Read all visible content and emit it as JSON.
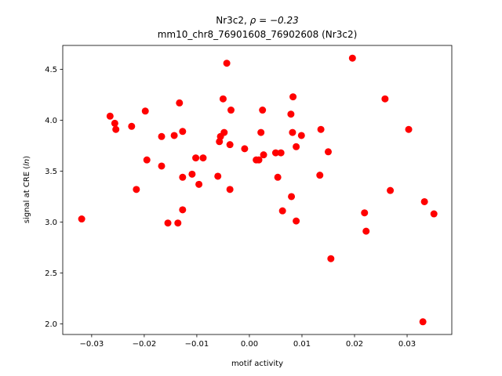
{
  "chart_data": {
    "type": "scatter",
    "title_line1_prefix": "Nr3c2, ",
    "title_line1_rho": "ρ = −0.23",
    "title_line2": "mm10_chr8_76901608_76902608 (Nr3c2)",
    "xlabel": "motif activity",
    "ylabel_prefix": "signal at CRE (",
    "ylabel_italic": "ln",
    "ylabel_suffix": ")",
    "xlim": [
      -0.0355,
      0.0385
    ],
    "ylim": [
      1.895,
      4.735
    ],
    "xticks": [
      -0.03,
      -0.02,
      -0.01,
      0.0,
      0.01,
      0.02,
      0.03
    ],
    "xtick_labels": [
      "−0.03",
      "−0.02",
      "−0.01",
      "0.00",
      "0.01",
      "0.02",
      "0.03"
    ],
    "yticks": [
      2.0,
      2.5,
      3.0,
      3.5,
      4.0,
      4.5
    ],
    "ytick_labels": [
      "2.0",
      "2.5",
      "3.0",
      "3.5",
      "4.0",
      "4.5"
    ],
    "marker_color": "#ff0000",
    "points": [
      {
        "x": -0.0319,
        "y": 3.03
      },
      {
        "x": -0.0265,
        "y": 4.04
      },
      {
        "x": -0.0256,
        "y": 3.97
      },
      {
        "x": -0.0254,
        "y": 3.91
      },
      {
        "x": -0.0224,
        "y": 3.94
      },
      {
        "x": -0.0215,
        "y": 3.32
      },
      {
        "x": -0.0198,
        "y": 4.09
      },
      {
        "x": -0.0195,
        "y": 3.61
      },
      {
        "x": -0.0167,
        "y": 3.84
      },
      {
        "x": -0.0167,
        "y": 3.55
      },
      {
        "x": -0.0155,
        "y": 2.99
      },
      {
        "x": -0.0143,
        "y": 3.85
      },
      {
        "x": -0.0136,
        "y": 2.99
      },
      {
        "x": -0.0133,
        "y": 4.17
      },
      {
        "x": -0.0127,
        "y": 3.89
      },
      {
        "x": -0.0127,
        "y": 3.44
      },
      {
        "x": -0.0127,
        "y": 3.12
      },
      {
        "x": -0.0109,
        "y": 3.47
      },
      {
        "x": -0.0102,
        "y": 3.63
      },
      {
        "x": -0.0096,
        "y": 3.37
      },
      {
        "x": -0.0088,
        "y": 3.63
      },
      {
        "x": -0.006,
        "y": 3.45
      },
      {
        "x": -0.0057,
        "y": 3.79
      },
      {
        "x": -0.0055,
        "y": 3.84
      },
      {
        "x": -0.005,
        "y": 4.21
      },
      {
        "x": -0.0048,
        "y": 3.88
      },
      {
        "x": -0.0043,
        "y": 4.56
      },
      {
        "x": -0.0037,
        "y": 3.76
      },
      {
        "x": -0.0037,
        "y": 3.32
      },
      {
        "x": -0.0035,
        "y": 4.1
      },
      {
        "x": -0.0009,
        "y": 3.72
      },
      {
        "x": 0.0013,
        "y": 3.61
      },
      {
        "x": 0.0018,
        "y": 3.61
      },
      {
        "x": 0.0022,
        "y": 3.88
      },
      {
        "x": 0.0025,
        "y": 4.1
      },
      {
        "x": 0.0027,
        "y": 3.66
      },
      {
        "x": 0.005,
        "y": 3.68
      },
      {
        "x": 0.0054,
        "y": 3.44
      },
      {
        "x": 0.006,
        "y": 3.68
      },
      {
        "x": 0.0063,
        "y": 3.11
      },
      {
        "x": 0.0079,
        "y": 4.06
      },
      {
        "x": 0.008,
        "y": 3.25
      },
      {
        "x": 0.0082,
        "y": 3.88
      },
      {
        "x": 0.0083,
        "y": 4.23
      },
      {
        "x": 0.0089,
        "y": 3.74
      },
      {
        "x": 0.0089,
        "y": 3.01
      },
      {
        "x": 0.0099,
        "y": 3.85
      },
      {
        "x": 0.0134,
        "y": 3.46
      },
      {
        "x": 0.0136,
        "y": 3.91
      },
      {
        "x": 0.015,
        "y": 3.69
      },
      {
        "x": 0.0155,
        "y": 2.64
      },
      {
        "x": 0.0196,
        "y": 4.61
      },
      {
        "x": 0.0219,
        "y": 3.09
      },
      {
        "x": 0.0222,
        "y": 2.91
      },
      {
        "x": 0.0258,
        "y": 4.21
      },
      {
        "x": 0.0268,
        "y": 3.31
      },
      {
        "x": 0.0303,
        "y": 3.91
      },
      {
        "x": 0.033,
        "y": 2.02
      },
      {
        "x": 0.0333,
        "y": 3.2
      },
      {
        "x": 0.0351,
        "y": 3.08
      }
    ]
  }
}
